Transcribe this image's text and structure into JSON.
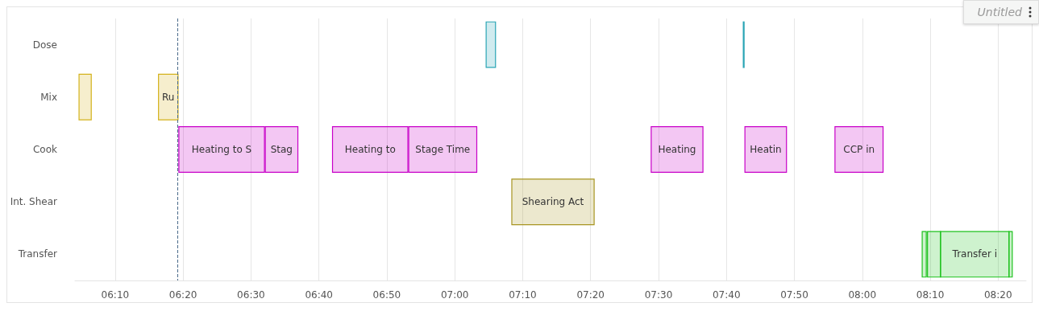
{
  "chart_data": {
    "type": "bar",
    "orientation": "horizontal",
    "title": "Untitled",
    "categories": [
      "Dose",
      "Mix",
      "Cook",
      "Int. Shear",
      "Transfer"
    ],
    "series": [
      {
        "colors": [
          "#2aa5b5",
          "#d4b21c",
          "#c800c8",
          "#a89522",
          "#1ec21e"
        ],
        "base": [
          7.077,
          6.078,
          6.323,
          7.14,
          8.147
        ],
        "values": [
          0.023,
          0.03,
          0.21,
          0.202,
          0.01
        ],
        "value_labels": [
          null,
          null,
          "Heating to S",
          "Shearing Act",
          null
        ]
      },
      {
        "colors": [
          "#2aa5b5",
          "#d4b21c",
          "#c800c8",
          null,
          "#1ec21e"
        ],
        "base": [
          7.708,
          6.273,
          6.535,
          null,
          8.16
        ],
        "values": [
          0.002,
          0.048,
          0.08,
          null,
          0.032
        ],
        "value_labels": [
          null,
          "Ru",
          "Stag",
          null,
          null
        ]
      },
      {
        "colors": [
          null,
          null,
          "#c800c8",
          null,
          "#1ec21e"
        ],
        "base": [
          null,
          null,
          6.7,
          null,
          8.192
        ],
        "values": [
          null,
          null,
          0.185,
          null,
          0.168
        ],
        "value_labels": [
          null,
          null,
          "Heating to",
          null,
          "Transfer i"
        ]
      },
      {
        "colors": [
          null,
          null,
          "#c800c8",
          null,
          "#1ec21e"
        ],
        "base": [
          null,
          null,
          6.887,
          null,
          8.36
        ],
        "values": [
          null,
          null,
          0.167,
          null,
          0.008
        ],
        "value_labels": [
          null,
          null,
          "Stage Time",
          null,
          null
        ]
      },
      {
        "colors": [
          null,
          null,
          "#c800c8",
          null,
          null
        ],
        "base": [
          null,
          null,
          7.482,
          null,
          null
        ],
        "values": [
          null,
          null,
          0.127,
          null,
          null
        ],
        "value_labels": [
          null,
          null,
          "Heating",
          null,
          null
        ]
      },
      {
        "colors": [
          null,
          null,
          "#c800c8",
          null,
          null
        ],
        "base": [
          null,
          null,
          7.712,
          null,
          null
        ],
        "values": [
          null,
          null,
          0.102,
          null,
          null
        ],
        "value_labels": [
          null,
          null,
          "Heatin",
          null,
          null
        ]
      },
      {
        "colors": [
          null,
          null,
          "#c800c8",
          null,
          null
        ],
        "base": [
          null,
          null,
          7.933,
          null,
          null
        ],
        "values": [
          null,
          null,
          0.118,
          null,
          null
        ],
        "value_labels": [
          null,
          null,
          "CCP in",
          null,
          null
        ]
      }
    ],
    "xlim": [
      6.068,
      8.402
    ],
    "xticks": [
      {
        "value": 6.1667,
        "label": "06:10"
      },
      {
        "value": 6.3333,
        "label": "06:20"
      },
      {
        "value": 6.5,
        "label": "06:30"
      },
      {
        "value": 6.6667,
        "label": "06:40"
      },
      {
        "value": 6.8333,
        "label": "06:50"
      },
      {
        "value": 7,
        "label": "07:00"
      },
      {
        "value": 7.1667,
        "label": "07:10"
      },
      {
        "value": 7.3333,
        "label": "07:20"
      },
      {
        "value": 7.5,
        "label": "07:30"
      },
      {
        "value": 7.6667,
        "label": "07:40"
      },
      {
        "value": 7.8333,
        "label": "07:50"
      },
      {
        "value": 8,
        "label": "08:00"
      },
      {
        "value": 8.1667,
        "label": "08:10"
      },
      {
        "value": 8.3333,
        "label": "08:20"
      }
    ],
    "ref_lines": [
      {
        "axis": "x",
        "value": 6.323,
        "label": null,
        "color": "#4a6a8a",
        "line_style": "dashed"
      }
    ],
    "grid": "x"
  }
}
